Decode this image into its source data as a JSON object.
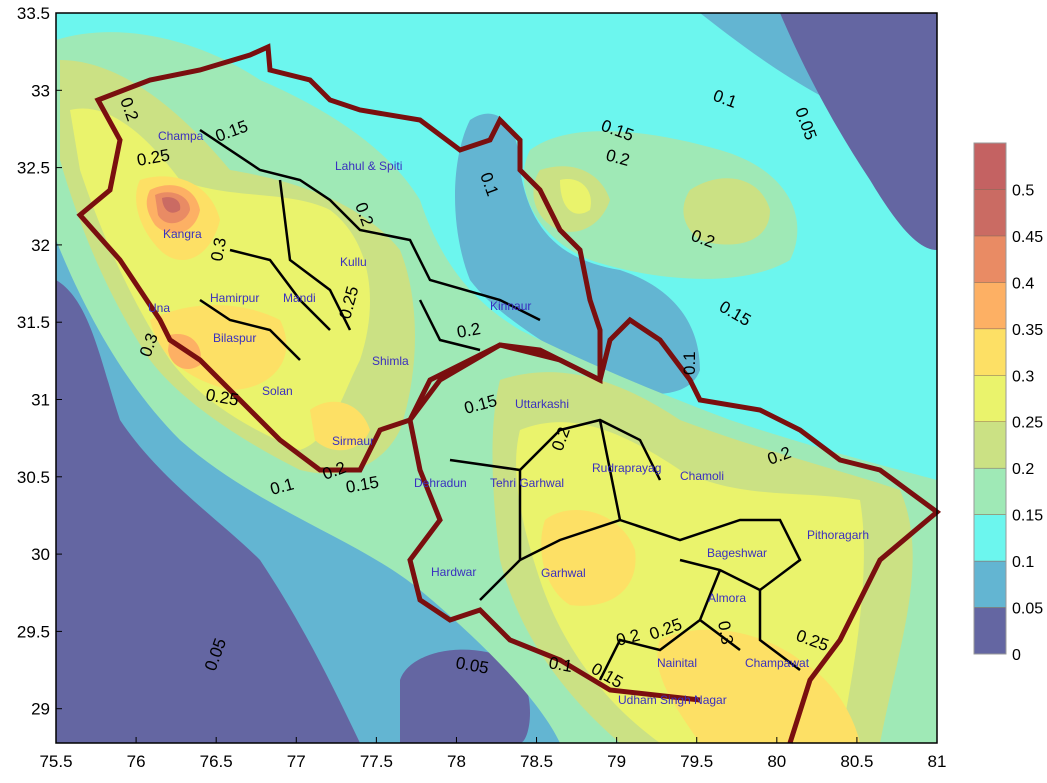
{
  "chart_data": {
    "type": "contour-map",
    "x_ticks": [
      "75.5",
      "76",
      "76.5",
      "77",
      "77.5",
      "78",
      "78.5",
      "79",
      "79.5",
      "80",
      "80.5",
      "81"
    ],
    "y_ticks": [
      "33.5",
      "33",
      "32.5",
      "32",
      "31.5",
      "31",
      "30.5",
      "30",
      "29.5",
      "29"
    ],
    "xlim": [
      75.5,
      81
    ],
    "ylim": [
      28.75,
      33.5
    ],
    "colorbar": {
      "labels": [
        "0",
        "0.05",
        "0.1",
        "0.15",
        "0.2",
        "0.25",
        "0.3",
        "0.35",
        "0.4",
        "0.45",
        "0.5"
      ],
      "colors": [
        "#6466a2",
        "#63b5d2",
        "#6cf6ee",
        "#9fe9b6",
        "#cbe184",
        "#eaf36c",
        "#fde065",
        "#fdb064",
        "#e98b64",
        "#ca6b63",
        "#c46262"
      ]
    },
    "districts": [
      "Champa",
      "Lahul & Spiti",
      "Kangra",
      "Kullu",
      "Mandi",
      "Hamirpur",
      "Una",
      "Bilaspur",
      "Kinnaur",
      "Shimla",
      "Solan",
      "Sirmaur",
      "Uttarkashi",
      "Rudraprayag",
      "Chamoli",
      "Dehradun",
      "Tehri Garhwal",
      "Pithoragarh",
      "Bageshwar",
      "Hardwar",
      "Garhwal",
      "Almora",
      "Nainital",
      "Champawat",
      "Udham Singh Nagar"
    ],
    "contour_labels": [
      "0.2",
      "0.15",
      "0.25",
      "0.3",
      "0.3",
      "0.25",
      "0.2",
      "0.1",
      "0.15",
      "0.1",
      "0.05",
      "0.15",
      "0.2",
      "0.2",
      "0.15",
      "0.1",
      "0.2",
      "0.25",
      "0.2",
      "0.15",
      "0.1",
      "0.2",
      "0.2",
      "0.25",
      "0.05",
      "0.05",
      "0.1",
      "0.15",
      "0.2",
      "0.25",
      "0.3"
    ]
  }
}
